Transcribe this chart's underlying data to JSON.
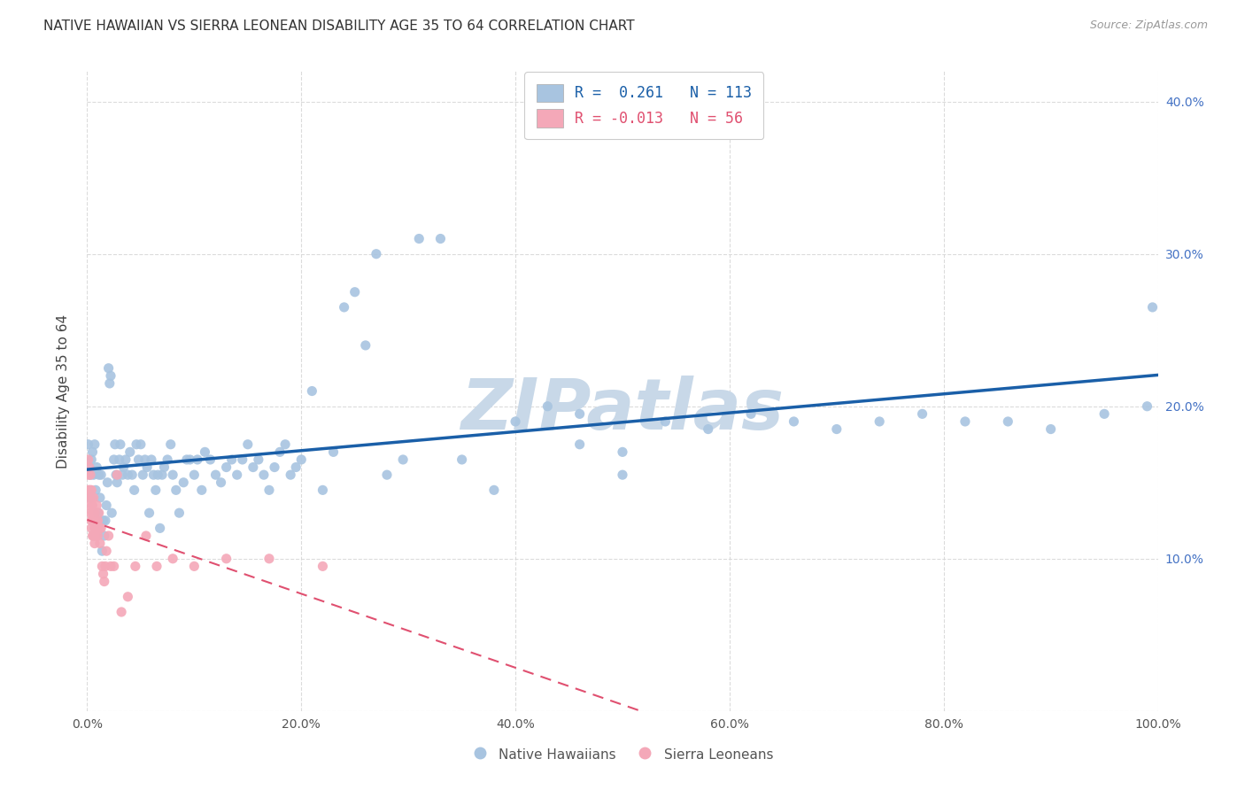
{
  "title": "NATIVE HAWAIIAN VS SIERRA LEONEAN DISABILITY AGE 35 TO 64 CORRELATION CHART",
  "source": "Source: ZipAtlas.com",
  "ylabel": "Disability Age 35 to 64",
  "xlim": [
    0,
    1.0
  ],
  "ylim": [
    0,
    0.42
  ],
  "xticks": [
    0.0,
    0.2,
    0.4,
    0.6,
    0.8,
    1.0
  ],
  "yticks": [
    0.0,
    0.1,
    0.2,
    0.3,
    0.4
  ],
  "xticklabels": [
    "0.0%",
    "20.0%",
    "40.0%",
    "60.0%",
    "80.0%",
    "100.0%"
  ],
  "yticklabels_right": [
    "",
    "10.0%",
    "20.0%",
    "30.0%",
    "40.0%"
  ],
  "r_blue": 0.261,
  "n_blue": 113,
  "r_pink": -0.013,
  "n_pink": 56,
  "blue_color": "#a8c4e0",
  "pink_color": "#f4a8b8",
  "blue_line_color": "#1a5fa8",
  "pink_line_color": "#e05070",
  "watermark": "ZIPatlas",
  "watermark_color": "#c8d8e8",
  "background_color": "#ffffff",
  "grid_color": "#d8d8d8",
  "title_fontsize": 11,
  "blue_x": [
    0.001,
    0.002,
    0.003,
    0.003,
    0.004,
    0.005,
    0.006,
    0.007,
    0.008,
    0.009,
    0.01,
    0.011,
    0.012,
    0.013,
    0.014,
    0.015,
    0.016,
    0.017,
    0.018,
    0.019,
    0.02,
    0.021,
    0.022,
    0.023,
    0.025,
    0.026,
    0.027,
    0.028,
    0.03,
    0.031,
    0.033,
    0.034,
    0.036,
    0.038,
    0.04,
    0.042,
    0.044,
    0.046,
    0.048,
    0.05,
    0.052,
    0.054,
    0.056,
    0.058,
    0.06,
    0.062,
    0.064,
    0.066,
    0.068,
    0.07,
    0.072,
    0.075,
    0.078,
    0.08,
    0.083,
    0.086,
    0.09,
    0.093,
    0.096,
    0.1,
    0.103,
    0.107,
    0.11,
    0.115,
    0.12,
    0.125,
    0.13,
    0.135,
    0.14,
    0.145,
    0.15,
    0.155,
    0.16,
    0.165,
    0.17,
    0.175,
    0.18,
    0.185,
    0.19,
    0.195,
    0.2,
    0.21,
    0.22,
    0.23,
    0.24,
    0.25,
    0.26,
    0.27,
    0.28,
    0.295,
    0.31,
    0.33,
    0.35,
    0.38,
    0.4,
    0.43,
    0.46,
    0.5,
    0.54,
    0.58,
    0.62,
    0.66,
    0.7,
    0.74,
    0.78,
    0.82,
    0.86,
    0.9,
    0.95,
    0.99,
    0.46,
    0.5,
    0.995
  ],
  "blue_y": [
    0.175,
    0.16,
    0.155,
    0.14,
    0.165,
    0.17,
    0.155,
    0.175,
    0.145,
    0.16,
    0.13,
    0.155,
    0.14,
    0.155,
    0.105,
    0.125,
    0.115,
    0.125,
    0.135,
    0.15,
    0.225,
    0.215,
    0.22,
    0.13,
    0.165,
    0.175,
    0.155,
    0.15,
    0.165,
    0.175,
    0.155,
    0.16,
    0.165,
    0.155,
    0.17,
    0.155,
    0.145,
    0.175,
    0.165,
    0.175,
    0.155,
    0.165,
    0.16,
    0.13,
    0.165,
    0.155,
    0.145,
    0.155,
    0.12,
    0.155,
    0.16,
    0.165,
    0.175,
    0.155,
    0.145,
    0.13,
    0.15,
    0.165,
    0.165,
    0.155,
    0.165,
    0.145,
    0.17,
    0.165,
    0.155,
    0.15,
    0.16,
    0.165,
    0.155,
    0.165,
    0.175,
    0.16,
    0.165,
    0.155,
    0.145,
    0.16,
    0.17,
    0.175,
    0.155,
    0.16,
    0.165,
    0.21,
    0.145,
    0.17,
    0.265,
    0.275,
    0.24,
    0.3,
    0.155,
    0.165,
    0.31,
    0.31,
    0.165,
    0.145,
    0.19,
    0.2,
    0.195,
    0.17,
    0.19,
    0.185,
    0.195,
    0.19,
    0.185,
    0.19,
    0.195,
    0.19,
    0.19,
    0.185,
    0.195,
    0.2,
    0.175,
    0.155,
    0.265
  ],
  "pink_x": [
    0.001,
    0.001,
    0.001,
    0.002,
    0.002,
    0.002,
    0.003,
    0.003,
    0.003,
    0.003,
    0.004,
    0.004,
    0.004,
    0.004,
    0.005,
    0.005,
    0.005,
    0.005,
    0.006,
    0.006,
    0.006,
    0.006,
    0.007,
    0.007,
    0.007,
    0.008,
    0.008,
    0.008,
    0.009,
    0.009,
    0.01,
    0.01,
    0.011,
    0.011,
    0.012,
    0.012,
    0.013,
    0.014,
    0.015,
    0.016,
    0.017,
    0.018,
    0.02,
    0.022,
    0.025,
    0.028,
    0.032,
    0.038,
    0.045,
    0.055,
    0.065,
    0.08,
    0.1,
    0.13,
    0.17,
    0.22
  ],
  "pink_y": [
    0.145,
    0.155,
    0.165,
    0.16,
    0.145,
    0.135,
    0.145,
    0.14,
    0.13,
    0.155,
    0.14,
    0.125,
    0.145,
    0.12,
    0.13,
    0.135,
    0.125,
    0.115,
    0.13,
    0.14,
    0.125,
    0.115,
    0.13,
    0.12,
    0.11,
    0.125,
    0.12,
    0.115,
    0.135,
    0.125,
    0.125,
    0.115,
    0.12,
    0.13,
    0.12,
    0.11,
    0.12,
    0.095,
    0.09,
    0.085,
    0.095,
    0.105,
    0.115,
    0.095,
    0.095,
    0.155,
    0.065,
    0.075,
    0.095,
    0.115,
    0.095,
    0.1,
    0.095,
    0.1,
    0.1,
    0.095
  ]
}
